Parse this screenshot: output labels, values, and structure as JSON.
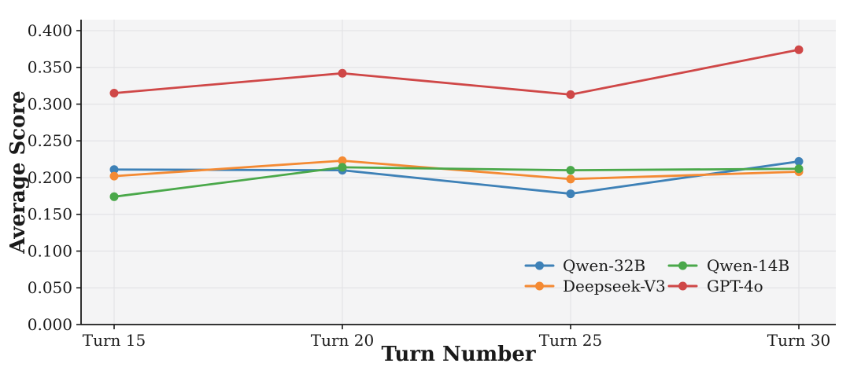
{
  "chart_data": {
    "type": "line",
    "title": "",
    "xlabel": "Turn Number",
    "ylabel": "Average Score",
    "categories": [
      "Turn 15",
      "Turn 20",
      "Turn 25",
      "Turn 30"
    ],
    "series": [
      {
        "name": "Qwen-32B",
        "color": "#3e81b7",
        "values": [
          0.211,
          0.21,
          0.178,
          0.222
        ]
      },
      {
        "name": "Deepseek-V3",
        "color": "#f48a33",
        "values": [
          0.202,
          0.223,
          0.198,
          0.208
        ]
      },
      {
        "name": "Qwen-14B",
        "color": "#4aa84a",
        "values": [
          0.174,
          0.214,
          0.21,
          0.212
        ]
      },
      {
        "name": "GPT-4o",
        "color": "#cf4747",
        "values": [
          0.315,
          0.342,
          0.313,
          0.374
        ]
      }
    ],
    "ylim": [
      0.0,
      0.4
    ],
    "ytick_labels": [
      "0.000",
      "0.050",
      "0.100",
      "0.150",
      "0.200",
      "0.250",
      "0.300",
      "0.350",
      "0.400"
    ],
    "grid": true,
    "legend_position": "lower-right-inside",
    "legend_columns": 2,
    "plot_background": "#f4f4f5",
    "gridline_color": "#e3e3e6",
    "axis_color": "#1a1a1a"
  }
}
